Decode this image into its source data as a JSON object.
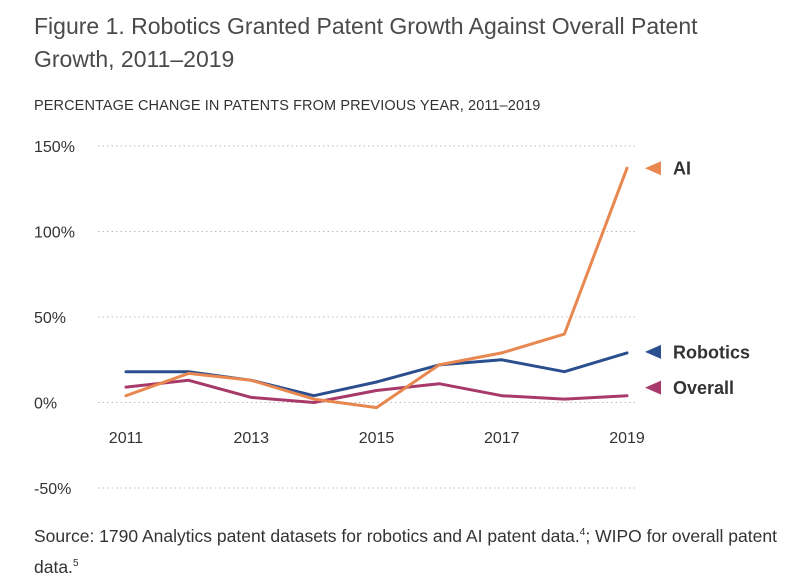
{
  "figure": {
    "title": "Figure 1. Robotics Granted Patent Growth Against Overall Patent Growth, 2011–2019",
    "subtitle": "PERCENTAGE CHANGE IN PATENTS FROM PREVIOUS YEAR, 2011–2019"
  },
  "source": {
    "text_main": "Source: 1790 Analytics patent datasets for robotics and AI patent data.",
    "sup1": "4",
    "text_mid": "; WIPO for overall patent data.",
    "sup2": "5"
  },
  "chart_data": {
    "type": "line",
    "x": [
      2011,
      2012,
      2013,
      2014,
      2015,
      2016,
      2017,
      2018,
      2019
    ],
    "x_tick_labels": [
      "2011",
      "2013",
      "2015",
      "2017",
      "2019"
    ],
    "y_tick_labels": [
      "150%",
      "100%",
      "50%",
      "0%",
      "-50%"
    ],
    "y_ticks": [
      150,
      100,
      50,
      0,
      -50
    ],
    "ylim": [
      -50,
      150
    ],
    "xlim": [
      2011,
      2019
    ],
    "grid": "dotted horizontal",
    "series": [
      {
        "name": "AI",
        "color": "#e8874f",
        "values": [
          4,
          17,
          13,
          2,
          -3,
          22,
          29,
          40,
          137
        ]
      },
      {
        "name": "Robotics",
        "color": "#2b4f8e",
        "values": [
          18,
          18,
          13,
          4,
          12,
          22,
          25,
          18,
          29
        ]
      },
      {
        "name": "Overall",
        "color": "#a8396b",
        "values": [
          9,
          13,
          3,
          0,
          7,
          11,
          4,
          2,
          4
        ]
      }
    ]
  }
}
